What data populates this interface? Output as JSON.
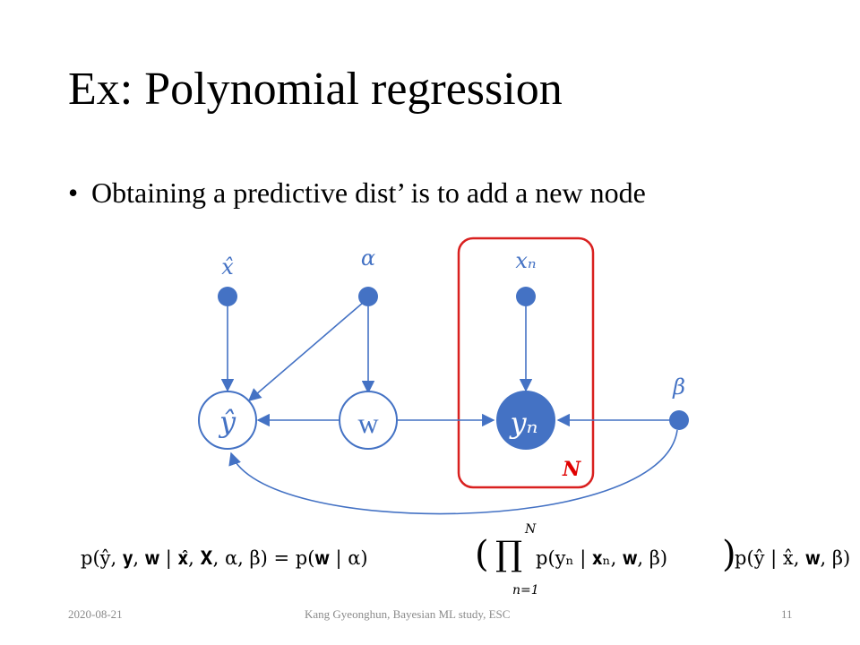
{
  "slide": {
    "title": "Ex: Polynomial regression",
    "bullet_marker": "•",
    "bullet_text": "Obtaining a predictive dist’ is to add a new node"
  },
  "diagram": {
    "colors": {
      "node": "#4472c4",
      "plate": "#d9201f",
      "plate_label": "#e00000"
    },
    "labels": {
      "x_hat": "x̂",
      "alpha": "α",
      "x_n": "xₙ",
      "beta": "β",
      "y_hat": "ŷ",
      "w": "w",
      "y_n": "yₙ",
      "plate": "N"
    }
  },
  "formula": {
    "lhs": "p(ŷ, 𝐲, 𝐰 | 𝐱̂, 𝐗, α, β) = p(𝐰 | α)",
    "prod_upper": "N",
    "prod_symbol": "∏",
    "prod_lower": "n=1",
    "inner": "p(yₙ | 𝐱ₙ, 𝐰, β)",
    "tail": "p(ŷ | x̂, 𝐰, β)",
    "open_paren": "(",
    "close_paren": ")"
  },
  "footer": {
    "date": "2020-08-21",
    "author": "Kang Gyeonghun,  Bayesian  ML study, ESC",
    "page": "11"
  }
}
